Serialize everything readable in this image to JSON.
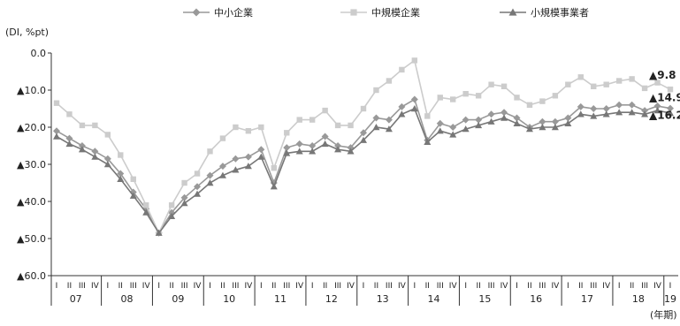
{
  "chart_data": {
    "type": "line",
    "unit_label": "(DI, %pt)",
    "x_unit_label": "(年期)",
    "quarter_labels": [
      "I",
      "II",
      "III",
      "IV"
    ],
    "years": [
      "07",
      "08",
      "09",
      "10",
      "11",
      "12",
      "13",
      "14",
      "15",
      "16",
      "17",
      "18",
      "19"
    ],
    "x": [
      "07-I",
      "07-II",
      "07-III",
      "07-IV",
      "08-I",
      "08-II",
      "08-III",
      "08-IV",
      "09-I",
      "09-II",
      "09-III",
      "09-IV",
      "10-I",
      "10-II",
      "10-III",
      "10-IV",
      "11-I",
      "11-II",
      "11-III",
      "11-IV",
      "12-I",
      "12-II",
      "12-III",
      "12-IV",
      "13-I",
      "13-II",
      "13-III",
      "13-IV",
      "14-I",
      "14-II",
      "14-III",
      "14-IV",
      "15-I",
      "15-II",
      "15-III",
      "15-IV",
      "16-I",
      "16-II",
      "16-III",
      "16-IV",
      "17-I",
      "17-II",
      "17-III",
      "17-IV",
      "18-I",
      "18-II",
      "18-III",
      "18-IV",
      "19-I"
    ],
    "ylim": [
      -60,
      0
    ],
    "y_ticks": [
      0,
      -10,
      -20,
      -30,
      -40,
      -50,
      -60
    ],
    "y_tick_labels": [
      "0.0",
      "▲10.0",
      "▲20.0",
      "▲30.0",
      "▲40.0",
      "▲50.0",
      "▲60.0"
    ],
    "grid": false,
    "legend_position": "top",
    "series": [
      {
        "name": "中小企業",
        "color": "#999999",
        "marker": "diamond",
        "values": [
          -21,
          -23,
          -25,
          -26.5,
          -28.5,
          -32.5,
          -37.5,
          -42,
          -48.5,
          -43,
          -39,
          -36,
          -33,
          -30.5,
          -28.5,
          -28,
          -26,
          -35,
          -25.5,
          -24.5,
          -25,
          -22.5,
          -25,
          -25.5,
          -21.5,
          -17.5,
          -18,
          -14.5,
          -12.5,
          -23.5,
          -19,
          -20,
          -18,
          -18,
          -16.5,
          -16,
          -17.5,
          -20,
          -18.5,
          -18.5,
          -17.5,
          -14.5,
          -15,
          -15,
          -14,
          -14,
          -15.5,
          -14.3,
          -14.9
        ],
        "end_label": "▲14.9"
      },
      {
        "name": "中規模企業",
        "color": "#cccccc",
        "marker": "square",
        "values": [
          -13.5,
          -16.5,
          -19.5,
          -19.5,
          -22,
          -27.5,
          -34,
          -41,
          -48.5,
          -41,
          -35,
          -32.5,
          -26.5,
          -23,
          -20,
          -21,
          -20,
          -31,
          -21.5,
          -18,
          -18,
          -15.5,
          -19.5,
          -19.5,
          -15,
          -10,
          -7.5,
          -4.5,
          -2,
          -17,
          -12,
          -12.5,
          -11,
          -11.5,
          -8.5,
          -9,
          -12,
          -14,
          -13,
          -11.5,
          -8.5,
          -6.5,
          -9,
          -8.5,
          -7.5,
          -7,
          -9.5,
          -8,
          -9.8
        ],
        "end_label": "▲9.8"
      },
      {
        "name": "小規模事業者",
        "color": "#777777",
        "marker": "triangle",
        "values": [
          -22.5,
          -24.5,
          -26,
          -28,
          -30,
          -34,
          -38.5,
          -43,
          -48.5,
          -44,
          -40.5,
          -38,
          -35,
          -33,
          -31.5,
          -30.5,
          -28,
          -36,
          -27,
          -26.5,
          -26.5,
          -24.5,
          -26,
          -26.5,
          -23.5,
          -20,
          -20.5,
          -16.5,
          -15,
          -24,
          -21,
          -22,
          -20.5,
          -19.5,
          -18.5,
          -17.5,
          -19,
          -20.5,
          -20,
          -20,
          -19,
          -16.5,
          -17,
          -16.5,
          -16,
          -16,
          -16.5,
          -15.5,
          -16.2
        ],
        "end_label": "▲16.2"
      }
    ]
  }
}
